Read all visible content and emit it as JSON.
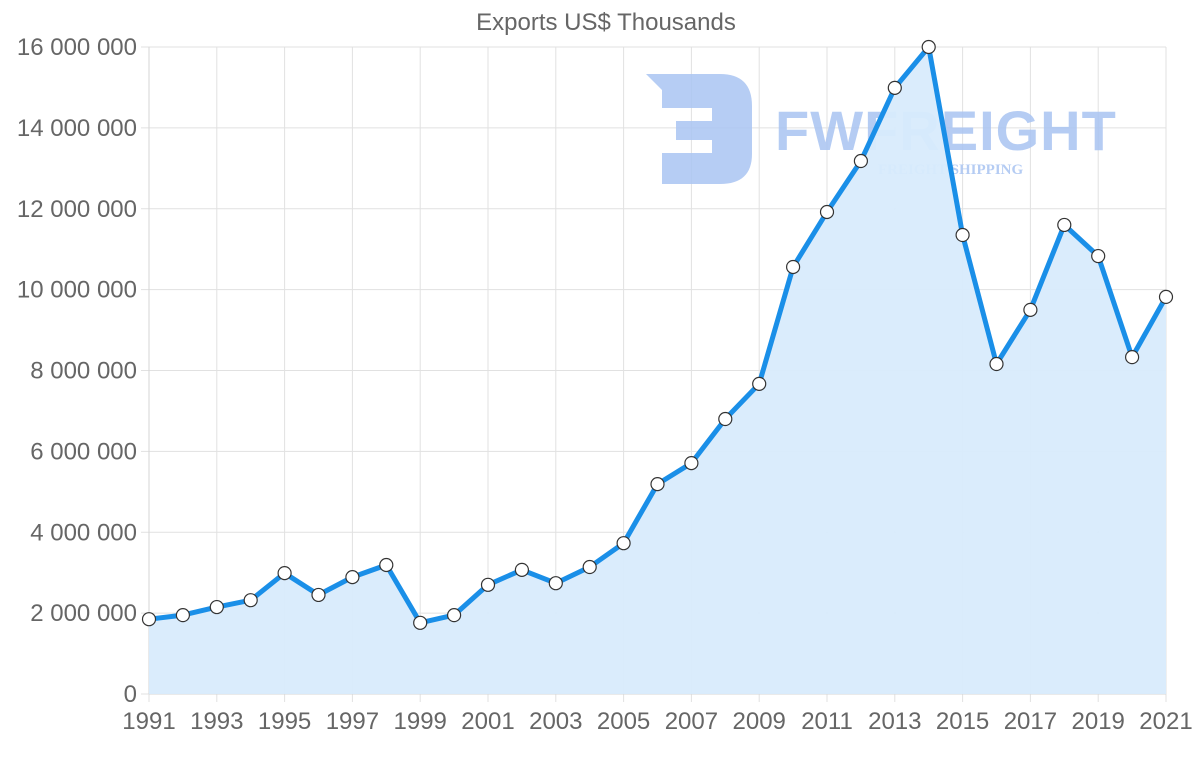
{
  "chart_data": {
    "type": "area",
    "title": "Exports US$ Thousands",
    "xlabel": "",
    "ylabel": "",
    "categories": [
      "1991",
      "1992",
      "1993",
      "1994",
      "1995",
      "1996",
      "1997",
      "1998",
      "1999",
      "2000",
      "2001",
      "2002",
      "2003",
      "2004",
      "2005",
      "2006",
      "2007",
      "2008",
      "2009",
      "2010",
      "2011",
      "2012",
      "2013",
      "2014",
      "2015",
      "2016",
      "2017",
      "2018",
      "2019",
      "2020",
      "2021"
    ],
    "series": [
      {
        "name": "Exports US$ Thousands",
        "values": [
          1850000,
          1950000,
          2150000,
          2320000,
          2990000,
          2450000,
          2890000,
          3190000,
          1760000,
          1950000,
          2700000,
          3070000,
          2740000,
          3140000,
          3730000,
          5190000,
          5710000,
          6800000,
          7670000,
          10560000,
          11920000,
          13180000,
          14990000,
          16000000,
          11350000,
          8160000,
          9500000,
          11600000,
          10830000,
          8330000,
          9820000
        ],
        "line_color": "#1a8fe8",
        "fill_color": "#d8ebfc",
        "marker_fill": "#ffffff",
        "marker_stroke": "#333333"
      }
    ],
    "x_tick_labels": [
      "1991",
      "1993",
      "1995",
      "1997",
      "1999",
      "2001",
      "2003",
      "2005",
      "2007",
      "2009",
      "2011",
      "2013",
      "2015",
      "2017",
      "2019",
      "2021"
    ],
    "y_ticks": [
      0,
      2000000,
      4000000,
      6000000,
      8000000,
      10000000,
      12000000,
      14000000,
      16000000
    ],
    "y_tick_labels": [
      "0",
      "2 000 000",
      "4 000 000",
      "6 000 000",
      "8 000 000",
      "10 000 000",
      "12 000 000",
      "14 000 000",
      "16 000 000"
    ],
    "ylim": [
      0,
      16000000
    ],
    "grid": true,
    "legend": "none"
  },
  "watermark": {
    "brand": "FWFREIGHT",
    "tagline": "FREIGHT SHIPPING",
    "color": "#a9c4f2"
  }
}
